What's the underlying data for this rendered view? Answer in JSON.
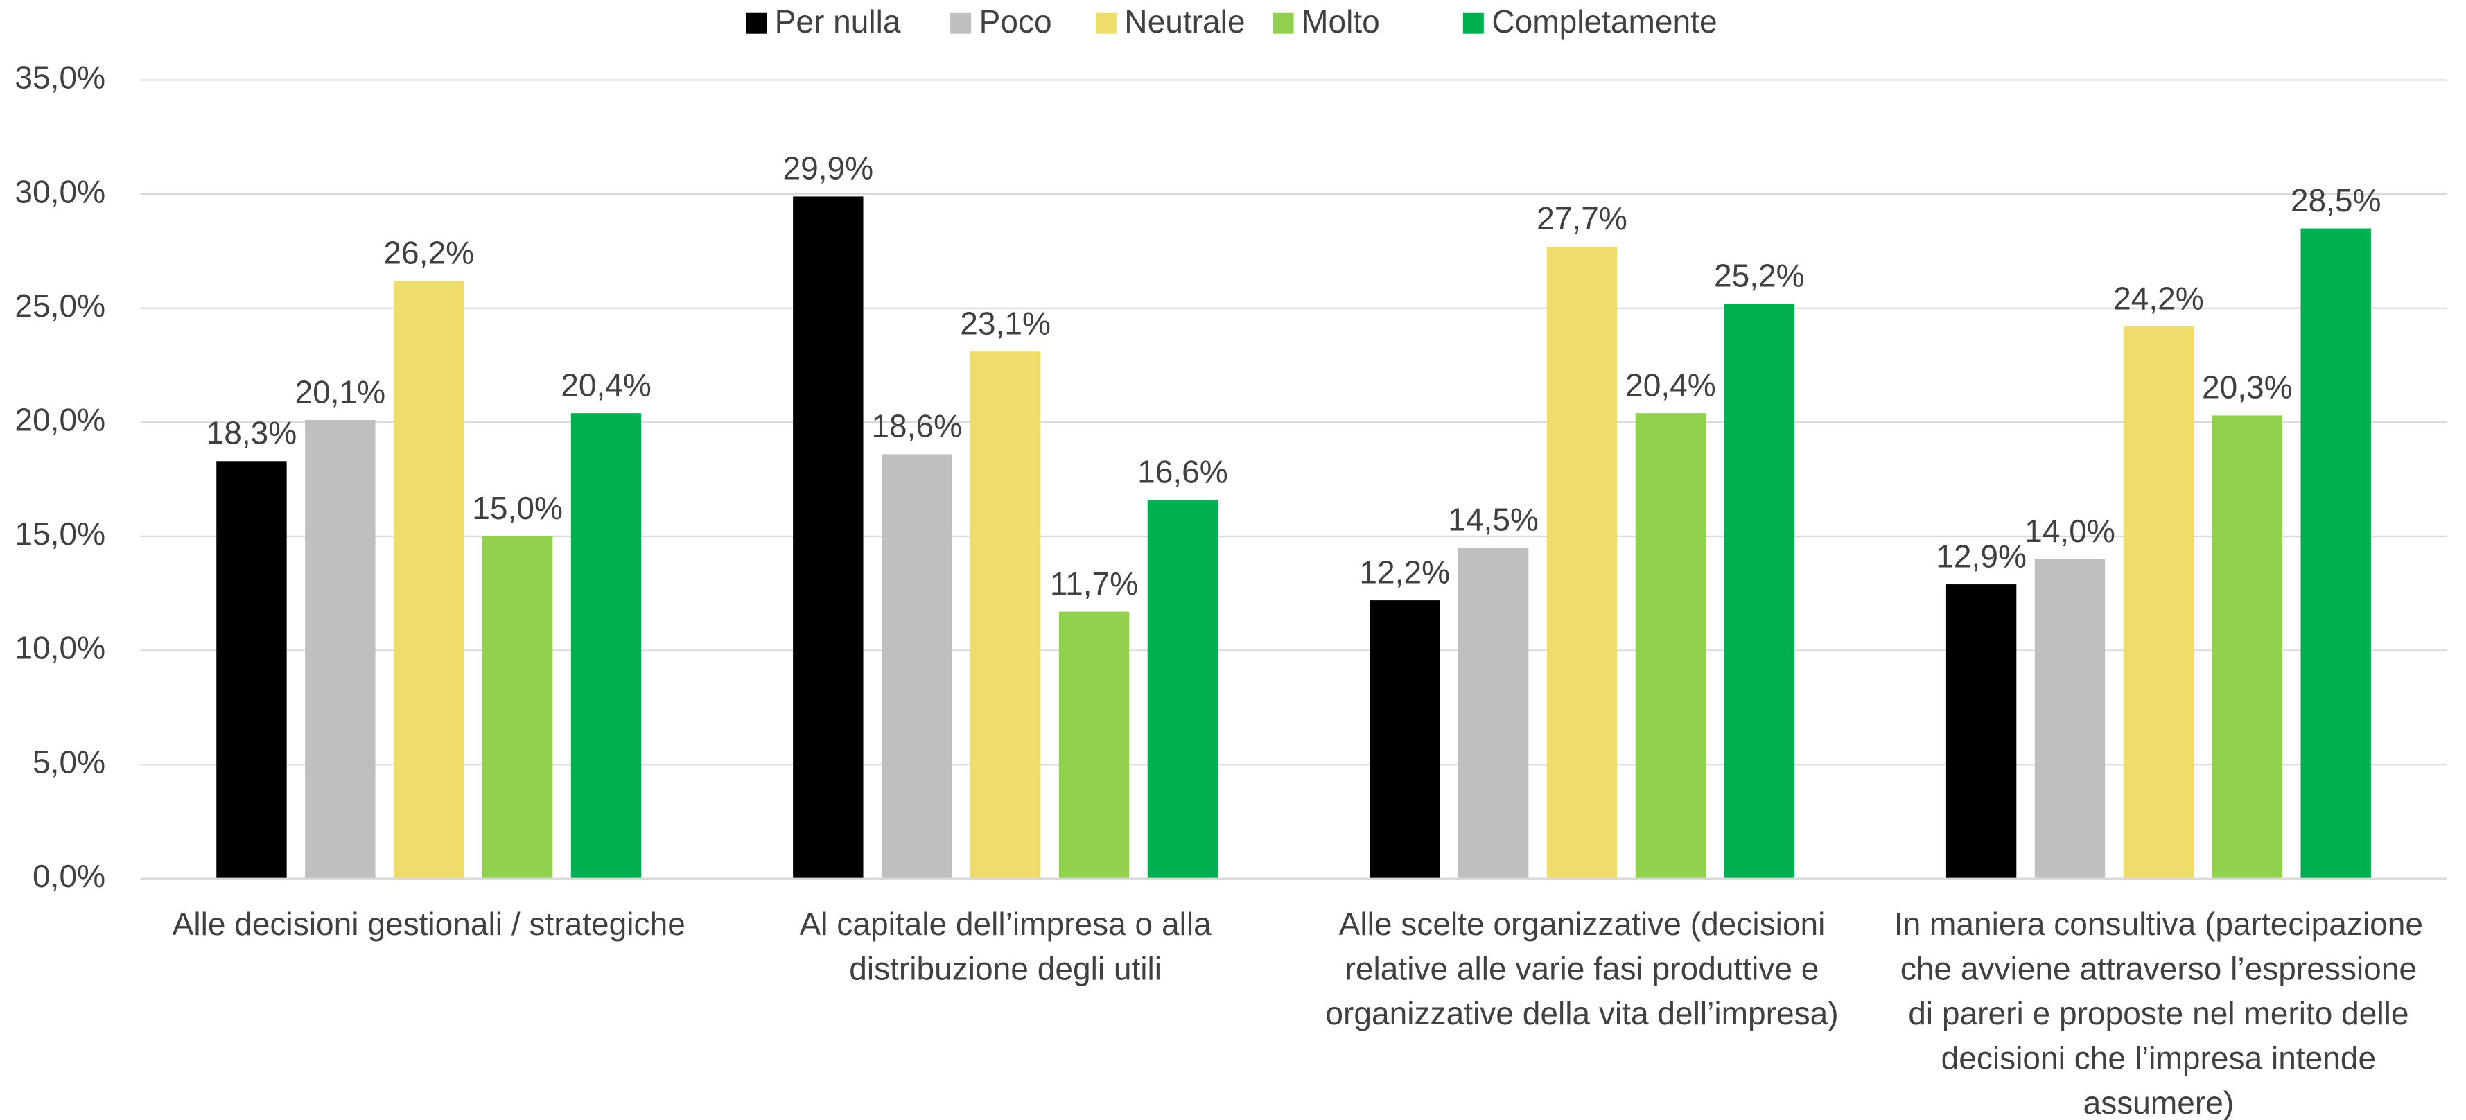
{
  "chart_data": {
    "type": "bar",
    "categories": [
      "Alle decisioni gestionali / strategiche",
      "Al capitale dell’impresa o alla\ndistribuzione degli utili",
      "Alle scelte organizzative (decisioni\nrelative alle varie fasi produttive e\norganizzative della vita dell’impresa)",
      "In maniera consultiva (partecipazione\nche avviene attraverso l’espressione\ndi pareri e proposte nel merito delle\ndecisioni che l’impresa intende\nassumere)"
    ],
    "series": [
      {
        "name": "Per nulla",
        "color": "#000000",
        "values": [
          18.3,
          29.9,
          12.2,
          12.9
        ],
        "value_labels": [
          "18,3%",
          "29,9%",
          "12,2%",
          "12,9%"
        ]
      },
      {
        "name": "Poco",
        "color": "#bfbfbf",
        "values": [
          20.1,
          18.6,
          14.5,
          14.0
        ],
        "value_labels": [
          "20,1%",
          "18,6%",
          "14,5%",
          "14,0%"
        ]
      },
      {
        "name": "Neutrale",
        "color": "#eedc6b",
        "values": [
          26.2,
          23.1,
          27.7,
          24.2
        ],
        "value_labels": [
          "26,2%",
          "23,1%",
          "27,7%",
          "24,2%"
        ]
      },
      {
        "name": "Molto",
        "color": "#92d050",
        "values": [
          15.0,
          11.7,
          20.4,
          20.3
        ],
        "value_labels": [
          "15,0%",
          "11,7%",
          "20,4%",
          "20,3%"
        ]
      },
      {
        "name": "Completamente",
        "color": "#00b050",
        "values": [
          20.4,
          16.6,
          25.2,
          28.5
        ],
        "value_labels": [
          "20,4%",
          "16,6%",
          "25,2%",
          "28,5%"
        ]
      }
    ],
    "ylim": [
      0,
      35
    ],
    "yticks": [
      {
        "value": 0,
        "label": "0,0%"
      },
      {
        "value": 5,
        "label": "5,0%"
      },
      {
        "value": 10,
        "label": "10,0%"
      },
      {
        "value": 15,
        "label": "15,0%"
      },
      {
        "value": 20,
        "label": "20,0%"
      },
      {
        "value": 25,
        "label": "25,0%"
      },
      {
        "value": 30,
        "label": "30,0%"
      },
      {
        "value": 35,
        "label": "35,0%"
      }
    ],
    "grid": true,
    "legend": "top"
  }
}
